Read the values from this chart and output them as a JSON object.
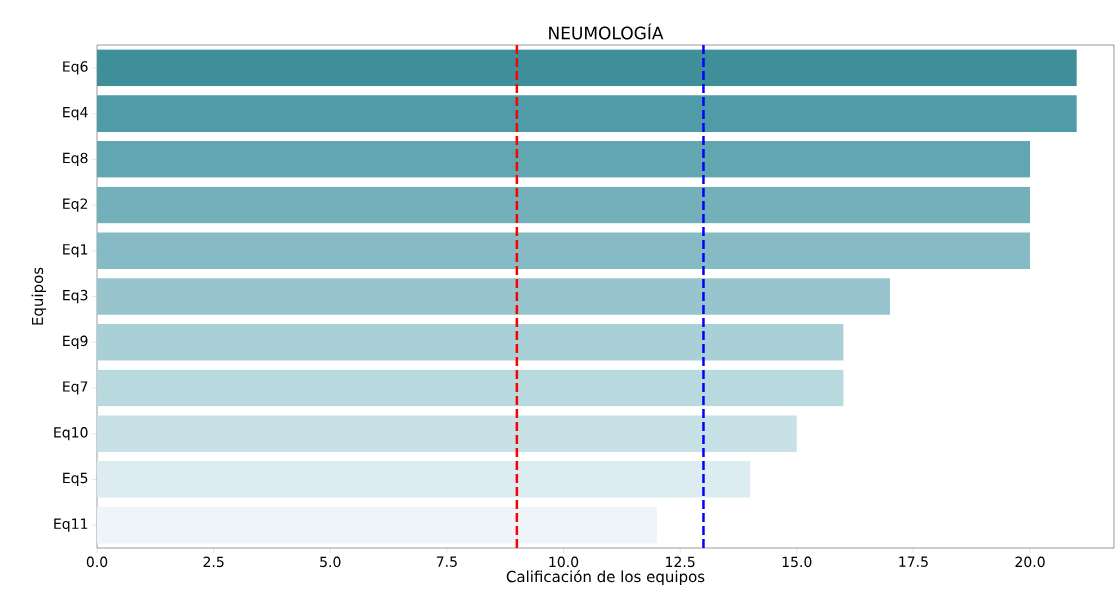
{
  "chart_data": {
    "type": "bar",
    "orientation": "horizontal",
    "title": "NEUMOLOGÍA",
    "xlabel": "Calificación de los equipos",
    "ylabel": "Equipos",
    "categories": [
      "Eq6",
      "Eq4",
      "Eq8",
      "Eq2",
      "Eq1",
      "Eq3",
      "Eq9",
      "Eq7",
      "Eq10",
      "Eq5",
      "Eq11"
    ],
    "values": [
      21,
      21,
      20,
      20,
      20,
      17,
      16,
      16,
      15,
      14,
      12
    ],
    "colors": [
      "#3f8f9b",
      "#509ba8",
      "#62a6b1",
      "#73b0ba",
      "#86bac4",
      "#98c5cd",
      "#a9d0d6",
      "#b8d9de",
      "#c8e1e6",
      "#dcecf0",
      "#edf5f8"
    ],
    "xlim": [
      0,
      21.8
    ],
    "xticks": [
      {
        "value": 0,
        "label": "0.0"
      },
      {
        "value": 2.5,
        "label": "2.5"
      },
      {
        "value": 5,
        "label": "5.0"
      },
      {
        "value": 7.5,
        "label": "7.5"
      },
      {
        "value": 10,
        "label": "10.0"
      },
      {
        "value": 12.5,
        "label": "12.5"
      },
      {
        "value": 15,
        "label": "15.0"
      },
      {
        "value": 17.5,
        "label": "17.5"
      },
      {
        "value": 20,
        "label": "20.0"
      }
    ],
    "ref_lines": [
      {
        "axis": "x",
        "value": 9,
        "color": "#ff0000",
        "line_style": "dashed"
      },
      {
        "axis": "x",
        "value": 13,
        "color": "#0000ff",
        "line_style": "dashed"
      }
    ],
    "grid": false
  }
}
